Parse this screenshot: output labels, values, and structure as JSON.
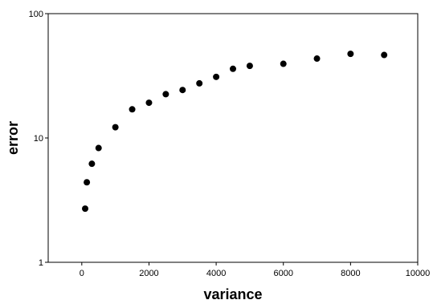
{
  "chart_data": {
    "type": "scatter",
    "xlabel": "variance",
    "ylabel": "error",
    "x_scale": "linear",
    "y_scale": "log",
    "xlim": [
      -1000,
      10000
    ],
    "ylim": [
      1,
      100
    ],
    "x_ticks": [
      0,
      2000,
      4000,
      6000,
      8000,
      10000
    ],
    "x_tick_labels": [
      "0",
      "2000",
      "4000",
      "6000",
      "8000",
      "10000"
    ],
    "y_ticks": [
      1,
      10,
      100
    ],
    "y_tick_labels": [
      "1",
      "10",
      "100"
    ],
    "grid": false,
    "legend": "none",
    "marker_color": "#000000",
    "points": [
      {
        "x": 100,
        "y": 2.7
      },
      {
        "x": 150,
        "y": 4.4
      },
      {
        "x": 300,
        "y": 6.2
      },
      {
        "x": 500,
        "y": 8.3
      },
      {
        "x": 1000,
        "y": 12.2
      },
      {
        "x": 1500,
        "y": 17.0
      },
      {
        "x": 2000,
        "y": 19.2
      },
      {
        "x": 2500,
        "y": 22.5
      },
      {
        "x": 3000,
        "y": 24.3
      },
      {
        "x": 3500,
        "y": 27.5
      },
      {
        "x": 4000,
        "y": 31.0
      },
      {
        "x": 4500,
        "y": 36.0
      },
      {
        "x": 5000,
        "y": 38.0
      },
      {
        "x": 6000,
        "y": 39.5
      },
      {
        "x": 7000,
        "y": 43.5
      },
      {
        "x": 8000,
        "y": 47.5
      },
      {
        "x": 9000,
        "y": 46.5
      }
    ]
  }
}
